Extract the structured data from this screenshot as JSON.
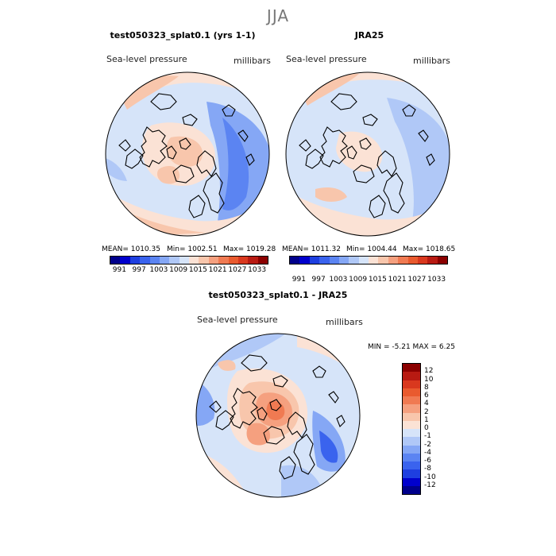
{
  "season": "JJA",
  "panels": {
    "model": {
      "title": "test050323_splat0.1 (yrs 1-1)",
      "variable": "Sea-level pressure",
      "units": "millibars",
      "mean_label": "MEAN= 1010.35",
      "min_label": "Min= 1002.51",
      "max_label": "Max= 1019.28"
    },
    "obs": {
      "title": "JRA25",
      "variable": "Sea-level pressure",
      "units": "millibars",
      "mean_label": "MEAN= 1011.32",
      "min_label": "Min= 1004.44",
      "max_label": "Max= 1018.65"
    },
    "diff": {
      "title": "test050323_splat0.1 - JRA25",
      "variable": "Sea-level pressure",
      "units": "millibars",
      "minmax_label": "MIN =   -5.21 MAX =    6.25"
    }
  },
  "colorbar_abs": {
    "colors": [
      "#00008b",
      "#0000cd",
      "#1e3fe0",
      "#3a63ee",
      "#5b84f2",
      "#85a7f5",
      "#b0c8f7",
      "#d6e4f9",
      "#fbe2d5",
      "#f8c6ac",
      "#f5a07f",
      "#f07a52",
      "#e95a2e",
      "#d9381e",
      "#b81a12",
      "#8b0000"
    ],
    "ticks": [
      "991",
      "997",
      "1003",
      "1009",
      "1015",
      "1021",
      "1027",
      "1033"
    ]
  },
  "colorbar_diff": {
    "colors": [
      "#00008b",
      "#0000cd",
      "#1e3fe0",
      "#3a63ee",
      "#5b84f2",
      "#85a7f5",
      "#b0c8f7",
      "#d6e4f9",
      "#fbe2d5",
      "#f8c6ac",
      "#f5a07f",
      "#f07a52",
      "#e95a2e",
      "#d9381e",
      "#b81a12",
      "#8b0000"
    ],
    "ticks": [
      "12",
      "10",
      "8",
      "6",
      "4",
      "2",
      "1",
      "0",
      "-1",
      "-2",
      "-4",
      "-6",
      "-8",
      "-10",
      "-12"
    ]
  }
}
